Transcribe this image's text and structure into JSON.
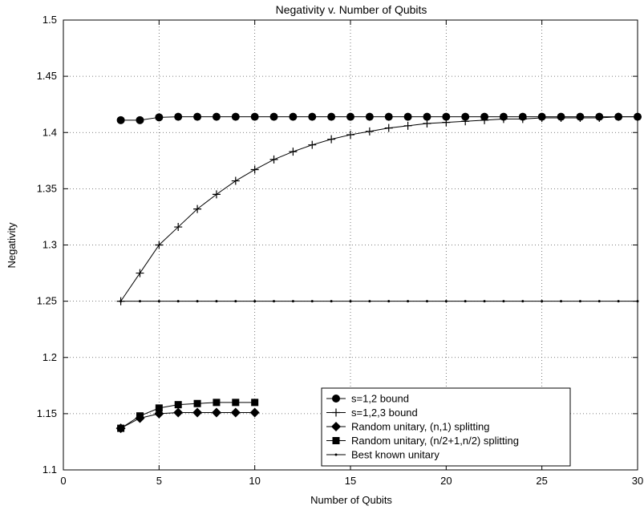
{
  "chart_data": {
    "type": "line",
    "title": "Negativity v. Number of Qubits",
    "xlabel": "Number of Qubits",
    "ylabel": "Negativity",
    "xlim": [
      0,
      30
    ],
    "ylim": [
      1.1,
      1.5
    ],
    "xticks": [
      "0",
      "5",
      "10",
      "15",
      "20",
      "25",
      "30"
    ],
    "yticks": [
      "1.1",
      "1.15",
      "1.2",
      "1.25",
      "1.3",
      "1.35",
      "1.4",
      "1.45",
      "1.5"
    ],
    "grid": true,
    "legend_position": "bottom-center",
    "series": [
      {
        "name": "s=1,2 bound",
        "marker": "circle",
        "x": [
          3,
          4,
          5,
          6,
          7,
          8,
          9,
          10,
          11,
          12,
          13,
          14,
          15,
          16,
          17,
          18,
          19,
          20,
          21,
          22,
          23,
          24,
          25,
          26,
          27,
          28,
          29,
          30
        ],
        "y": [
          1.411,
          1.411,
          1.4135,
          1.414,
          1.414,
          1.414,
          1.414,
          1.414,
          1.414,
          1.414,
          1.414,
          1.414,
          1.414,
          1.414,
          1.414,
          1.414,
          1.414,
          1.414,
          1.414,
          1.414,
          1.414,
          1.414,
          1.414,
          1.414,
          1.414,
          1.414,
          1.414,
          1.414
        ]
      },
      {
        "name": "s=1,2,3 bound",
        "marker": "plus",
        "x": [
          3,
          4,
          5,
          6,
          7,
          8,
          9,
          10,
          11,
          12,
          13,
          14,
          15,
          16,
          17,
          18,
          19,
          20,
          21,
          22,
          23,
          24,
          25,
          26,
          27,
          28,
          29,
          30
        ],
        "y": [
          1.25,
          1.275,
          1.3,
          1.316,
          1.332,
          1.345,
          1.357,
          1.367,
          1.376,
          1.383,
          1.389,
          1.394,
          1.398,
          1.401,
          1.404,
          1.406,
          1.408,
          1.409,
          1.41,
          1.411,
          1.412,
          1.412,
          1.413,
          1.413,
          1.413,
          1.413,
          1.414,
          1.414
        ]
      },
      {
        "name": "Random unitary, (n,1) splitting",
        "marker": "diamond",
        "x": [
          3,
          4,
          5,
          6,
          7,
          8,
          9,
          10
        ],
        "y": [
          1.137,
          1.146,
          1.15,
          1.151,
          1.151,
          1.151,
          1.151,
          1.151
        ]
      },
      {
        "name": "Random unitary, (n/2+1,n/2) splitting",
        "marker": "square",
        "x": [
          3,
          4,
          5,
          6,
          7,
          8,
          9,
          10
        ],
        "y": [
          1.137,
          1.148,
          1.155,
          1.158,
          1.159,
          1.16,
          1.16,
          1.16
        ]
      },
      {
        "name": "Best known unitary",
        "marker": "dot",
        "x": [
          3,
          4,
          5,
          6,
          7,
          8,
          9,
          10,
          11,
          12,
          13,
          14,
          15,
          16,
          17,
          18,
          19,
          20,
          21,
          22,
          23,
          24,
          25,
          26,
          27,
          28,
          29,
          30
        ],
        "y": [
          1.25,
          1.25,
          1.25,
          1.25,
          1.25,
          1.25,
          1.25,
          1.25,
          1.25,
          1.25,
          1.25,
          1.25,
          1.25,
          1.25,
          1.25,
          1.25,
          1.25,
          1.25,
          1.25,
          1.25,
          1.25,
          1.25,
          1.25,
          1.25,
          1.25,
          1.25,
          1.25,
          1.25
        ]
      }
    ]
  }
}
